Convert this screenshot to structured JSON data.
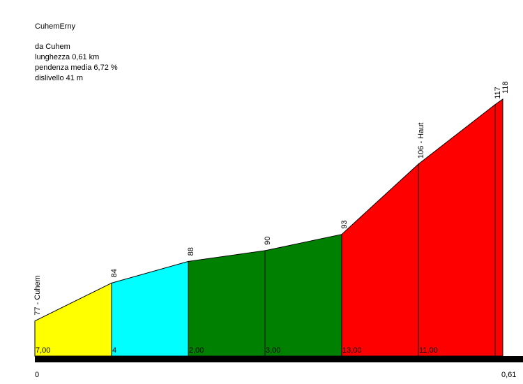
{
  "chart_data": {
    "type": "profile",
    "title": "CuhemErny",
    "info": [
      "da Cuhem",
      "lunghezza 0,61 km",
      "pendenza media 6,72 %",
      "dislivello 41 m"
    ],
    "x": [
      0,
      0.1,
      0.2,
      0.3,
      0.4,
      0.5,
      0.6,
      0.61
    ],
    "values": [
      77,
      84,
      88,
      90,
      93,
      106,
      117,
      118
    ],
    "value_labels": [
      "77 - Cuhem",
      "84",
      "88",
      "90",
      "93",
      "106 - Haut",
      "117",
      "118"
    ],
    "gradients": [
      7,
      4,
      2,
      3,
      13,
      11,
      null
    ],
    "gradient_labels": [
      "7,00",
      "4",
      "2,00",
      "3,00",
      "13,00",
      "11,00",
      null
    ],
    "segment_colors": [
      "#ffff00",
      "#00ffff",
      "#008000",
      "#008000",
      "#ff0000",
      "#ff0000",
      "#ff0000"
    ],
    "xlim": [
      0,
      0.61
    ],
    "ylim": [
      70.5,
      118
    ],
    "xticks": [
      0,
      {
        "value": 0.61,
        "label": "0,61"
      }
    ]
  }
}
